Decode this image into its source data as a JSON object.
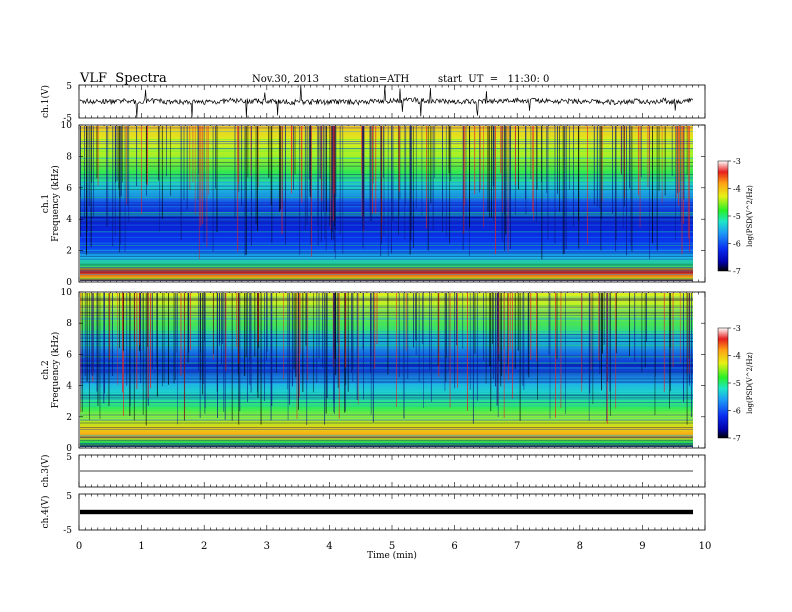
{
  "header": {
    "title": "VLF  Spectra",
    "date": "Nov.30, 2013",
    "station": "station=ATH",
    "start": "start  UT  =   11:30: 0"
  },
  "colors": {
    "colormap": [
      "#000000",
      "#0000a8",
      "#0a2cf0",
      "#1e9ef5",
      "#1ee6c8",
      "#28f028",
      "#e6f014",
      "#ffa014",
      "#e61e1e",
      "#ffffff"
    ]
  },
  "chart_data": [
    {
      "id": "ch1",
      "type": "line",
      "ylabel": "ch.1(V)",
      "ylim": [
        -5,
        5
      ],
      "yticks": [
        "5",
        "-5"
      ],
      "xlim": [
        0,
        10
      ],
      "approx_level": 0,
      "note_values": "noisy waveform ~0 V with spikes"
    },
    {
      "id": "ch1-spec",
      "type": "heatmap",
      "ylabel_top": "ch.1",
      "ylabel": "Frequency  (kHz)",
      "ylim": [
        0,
        10
      ],
      "yticks": [
        "0",
        "2",
        "4",
        "6",
        "8",
        "10"
      ],
      "xlim": [
        0,
        9.8
      ],
      "colorbar": {
        "label": "log(PSD(V^2/Hz)",
        "ticks": [
          "-3",
          "-4",
          "-5",
          "-6",
          "-7"
        ],
        "range": [
          -7,
          -3
        ]
      }
    },
    {
      "id": "ch2-spec",
      "type": "heatmap",
      "ylabel_top": "ch.2",
      "ylabel": "Frequency  (kHz)",
      "ylim": [
        0,
        10
      ],
      "yticks": [
        "0",
        "2",
        "4",
        "6",
        "8",
        "10"
      ],
      "xlim": [
        0,
        9.8
      ],
      "colorbar": {
        "label": "log(PSD(V^2/Hz)",
        "ticks": [
          "-3",
          "-4",
          "-5",
          "-6",
          "-7"
        ],
        "range": [
          -7,
          -3
        ]
      }
    },
    {
      "id": "ch3",
      "type": "line",
      "ylabel": "ch.3(V)",
      "ylim": [
        -5,
        5
      ],
      "yticks": [
        "5"
      ],
      "approx_level": 0
    },
    {
      "id": "ch4",
      "type": "line",
      "ylabel": "ch.4(V)",
      "ylim": [
        -5,
        5
      ],
      "yticks": [
        "5",
        "-5"
      ],
      "approx_level": 0
    }
  ],
  "xaxis": {
    "label": "Time  (min)",
    "range": [
      0,
      10
    ],
    "ticks": [
      "0",
      "1",
      "2",
      "3",
      "4",
      "5",
      "6",
      "7",
      "8",
      "9",
      "10"
    ]
  }
}
